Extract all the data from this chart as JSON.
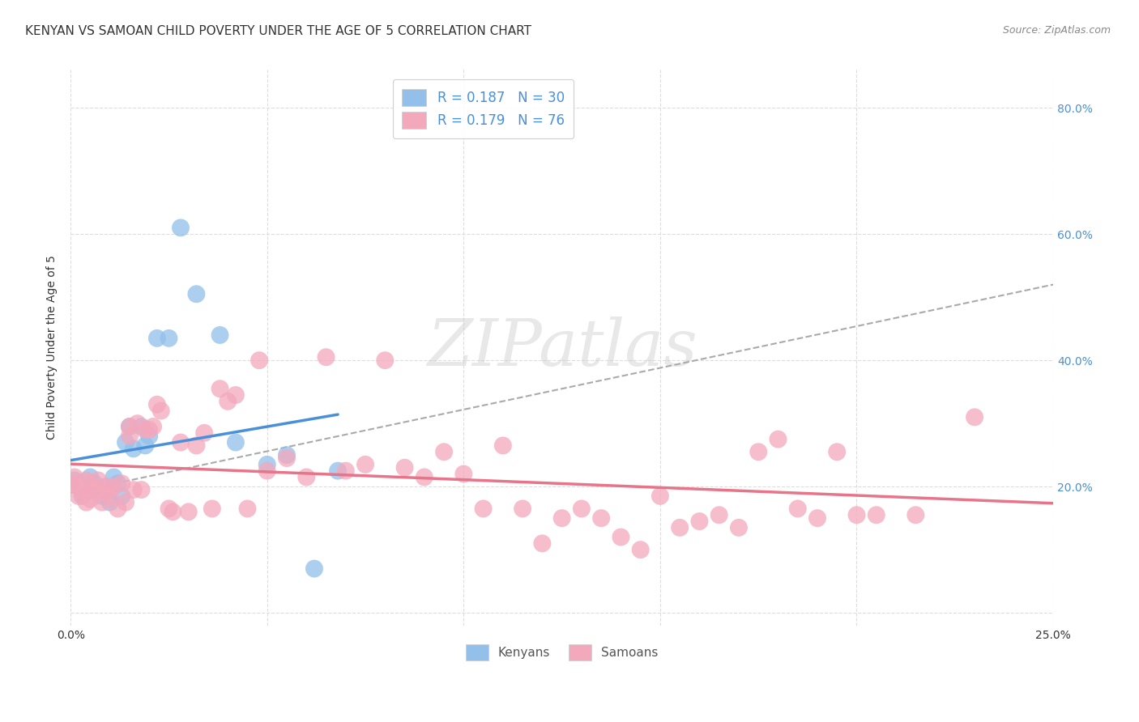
{
  "title": "KENYAN VS SAMOAN CHILD POVERTY UNDER THE AGE OF 5 CORRELATION CHART",
  "source": "Source: ZipAtlas.com",
  "ylabel": "Child Poverty Under the Age of 5",
  "xlim": [
    0.0,
    0.25
  ],
  "ylim": [
    -0.02,
    0.86
  ],
  "x_ticks": [
    0.0,
    0.05,
    0.1,
    0.15,
    0.2,
    0.25
  ],
  "x_tick_labels": [
    "0.0%",
    "",
    "",
    "",
    "",
    "25.0%"
  ],
  "y_ticks": [
    0.0,
    0.2,
    0.4,
    0.6,
    0.8
  ],
  "y_tick_labels_right": [
    "",
    "20.0%",
    "40.0%",
    "60.0%",
    "80.0%"
  ],
  "kenyan_color": "#92C0EA",
  "samoan_color": "#F4A8BC",
  "kenyan_trend_color": "#4A90D9",
  "samoan_trend_color": "#E8748A",
  "dashed_line_color": "#AAAAAA",
  "R_kenyan": 0.187,
  "N_kenyan": 30,
  "R_samoan": 0.179,
  "N_samoan": 76,
  "legend_label_kenyan": "Kenyans",
  "legend_label_samoan": "Samoans",
  "legend_text_color": "#333333",
  "legend_value_color": "#4A90D9",
  "watermark_text": "ZIPatlas",
  "kenyan_x": [
    0.001,
    0.002,
    0.003,
    0.004,
    0.005,
    0.005,
    0.006,
    0.007,
    0.008,
    0.009,
    0.01,
    0.011,
    0.012,
    0.013,
    0.014,
    0.015,
    0.016,
    0.018,
    0.019,
    0.02,
    0.022,
    0.025,
    0.028,
    0.032,
    0.038,
    0.042,
    0.05,
    0.055,
    0.062,
    0.068
  ],
  "kenyan_y": [
    0.21,
    0.205,
    0.185,
    0.195,
    0.215,
    0.195,
    0.205,
    0.195,
    0.185,
    0.2,
    0.175,
    0.215,
    0.205,
    0.185,
    0.27,
    0.295,
    0.26,
    0.295,
    0.265,
    0.28,
    0.435,
    0.435,
    0.61,
    0.505,
    0.44,
    0.27,
    0.235,
    0.25,
    0.07,
    0.225
  ],
  "samoan_x": [
    0.001,
    0.001,
    0.002,
    0.002,
    0.003,
    0.004,
    0.004,
    0.005,
    0.005,
    0.006,
    0.007,
    0.007,
    0.008,
    0.009,
    0.009,
    0.01,
    0.011,
    0.012,
    0.013,
    0.014,
    0.015,
    0.015,
    0.016,
    0.017,
    0.018,
    0.019,
    0.02,
    0.021,
    0.022,
    0.023,
    0.025,
    0.026,
    0.028,
    0.03,
    0.032,
    0.034,
    0.036,
    0.038,
    0.04,
    0.042,
    0.045,
    0.048,
    0.05,
    0.055,
    0.06,
    0.065,
    0.07,
    0.075,
    0.08,
    0.085,
    0.09,
    0.095,
    0.1,
    0.105,
    0.11,
    0.115,
    0.12,
    0.125,
    0.13,
    0.135,
    0.14,
    0.145,
    0.15,
    0.155,
    0.16,
    0.165,
    0.17,
    0.175,
    0.18,
    0.185,
    0.19,
    0.195,
    0.2,
    0.205,
    0.215,
    0.23
  ],
  "samoan_y": [
    0.205,
    0.215,
    0.185,
    0.2,
    0.19,
    0.175,
    0.21,
    0.18,
    0.205,
    0.195,
    0.195,
    0.21,
    0.175,
    0.19,
    0.2,
    0.185,
    0.2,
    0.165,
    0.205,
    0.175,
    0.28,
    0.295,
    0.195,
    0.3,
    0.195,
    0.29,
    0.29,
    0.295,
    0.33,
    0.32,
    0.165,
    0.16,
    0.27,
    0.16,
    0.265,
    0.285,
    0.165,
    0.355,
    0.335,
    0.345,
    0.165,
    0.4,
    0.225,
    0.245,
    0.215,
    0.405,
    0.225,
    0.235,
    0.4,
    0.23,
    0.215,
    0.255,
    0.22,
    0.165,
    0.265,
    0.165,
    0.11,
    0.15,
    0.165,
    0.15,
    0.12,
    0.1,
    0.185,
    0.135,
    0.145,
    0.155,
    0.135,
    0.255,
    0.275,
    0.165,
    0.15,
    0.255,
    0.155,
    0.155,
    0.155,
    0.31
  ],
  "title_fontsize": 11,
  "axis_label_fontsize": 10,
  "tick_label_fontsize": 10,
  "legend_fontsize": 12,
  "source_fontsize": 9,
  "background_color": "#FFFFFF",
  "grid_color": "#DDDDDD"
}
